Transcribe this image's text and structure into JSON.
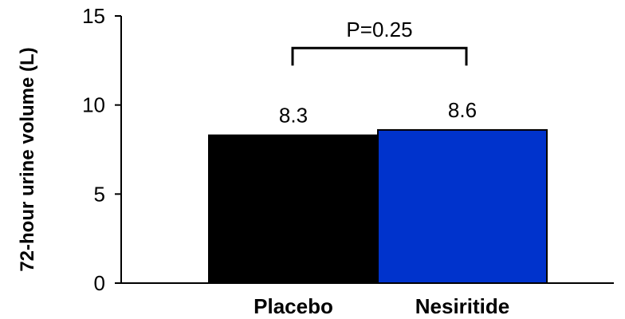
{
  "chart_data": {
    "type": "bar",
    "title": "",
    "xlabel": "",
    "ylabel": "72-hour urine volume (L)",
    "ylim": [
      0,
      15
    ],
    "yticks": [
      0,
      5,
      10,
      15
    ],
    "grid": false,
    "legend": "none",
    "categories": [
      "Placebo",
      "Nesiritide"
    ],
    "values": [
      8.3,
      8.6
    ],
    "data_labels": [
      "8.3",
      "8.6"
    ],
    "colors": [
      "#000000",
      "#0033cc"
    ],
    "significance": {
      "between": [
        "Placebo",
        "Nesiritide"
      ],
      "label": "P=0.25",
      "bracket_level": 13.2
    }
  }
}
